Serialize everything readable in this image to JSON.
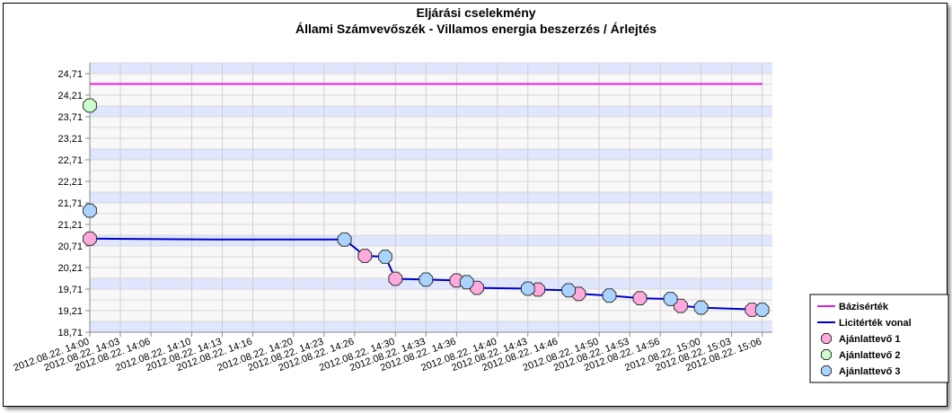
{
  "chart_data": {
    "type": "line",
    "title": "Eljárási cselekmény",
    "subtitle": "Állami Számvevőszék - Villamos energia beszerzés / Árlejtés",
    "ylim": [
      18.71,
      24.96
    ],
    "yticks": [
      "18,71",
      "19,21",
      "19,71",
      "20,21",
      "20,71",
      "21,21",
      "21,71",
      "22,21",
      "22,71",
      "23,21",
      "23,71",
      "24,21",
      "24,71"
    ],
    "xlim": [
      "2012.08.22. 14:00",
      "2012.08.22. 15:07"
    ],
    "xticks": [
      "2012.08.22. 14:00",
      "2012.08.22. 14:03",
      "2012.08.22. 14:06",
      "2012.08.22. 14:10",
      "2012.08.22. 14:13",
      "2012.08.22. 14:16",
      "2012.08.22. 14:20",
      "2012.08.22. 14:23",
      "2012.08.22. 14:26",
      "2012.08.22. 14:30",
      "2012.08.22. 14:33",
      "2012.08.22. 14:36",
      "2012.08.22. 14:40",
      "2012.08.22. 14:43",
      "2012.08.22. 14:46",
      "2012.08.22. 14:50",
      "2012.08.22. 14:53",
      "2012.08.22. 14:56",
      "2012.08.22. 15:00",
      "2012.08.22. 15:03",
      "2012.08.22. 15:06"
    ],
    "grid": true,
    "legend_position": "bottom-right",
    "series": [
      {
        "name": "Bázisérték",
        "kind": "line",
        "color": "#e020e0",
        "x": [
          "2012.08.22. 14:00",
          "2012.08.22. 15:06"
        ],
        "y": [
          24.47,
          24.47
        ]
      },
      {
        "name": "Licitérték vonal",
        "kind": "step-line",
        "color": "#0000cc",
        "x": [
          "2012.08.22. 14:00",
          "2012.08.22. 14:12",
          "2012.08.22. 14:25",
          "2012.08.22. 14:27",
          "2012.08.22. 14:29",
          "2012.08.22. 14:30",
          "2012.08.22. 14:33",
          "2012.08.22. 14:36",
          "2012.08.22. 14:37",
          "2012.08.22. 14:38",
          "2012.08.22. 14:43",
          "2012.08.22. 14:44",
          "2012.08.22. 14:47",
          "2012.08.22. 14:48",
          "2012.08.22. 14:51",
          "2012.08.22. 14:54",
          "2012.08.22. 14:57",
          "2012.08.22. 14:58",
          "2012.08.22. 15:00",
          "2012.08.22. 15:06"
        ],
        "y": [
          20.88,
          20.86,
          20.86,
          20.48,
          20.46,
          19.95,
          19.93,
          19.91,
          19.87,
          19.74,
          19.72,
          19.7,
          19.68,
          19.6,
          19.56,
          19.5,
          19.48,
          19.32,
          19.28,
          19.23
        ]
      },
      {
        "name": "Ajánlattevő 1",
        "kind": "marker",
        "color": "#ffaadd",
        "x": [
          "2012.08.22. 14:00",
          "2012.08.22. 14:27",
          "2012.08.22. 14:30",
          "2012.08.22. 14:36",
          "2012.08.22. 14:38",
          "2012.08.22. 14:44",
          "2012.08.22. 14:48",
          "2012.08.22. 14:54",
          "2012.08.22. 14:58",
          "2012.08.22. 15:05"
        ],
        "y": [
          20.88,
          20.48,
          19.95,
          19.91,
          19.74,
          19.7,
          19.6,
          19.5,
          19.32,
          19.23
        ]
      },
      {
        "name": "Ajánlattevő 2",
        "kind": "marker",
        "color": "#ccffcc",
        "x": [
          "2012.08.22. 14:00"
        ],
        "y": [
          23.97
        ]
      },
      {
        "name": "Ajánlattevő 3",
        "kind": "marker",
        "color": "#aad4ff",
        "x": [
          "2012.08.22. 14:00",
          "2012.08.22. 14:25",
          "2012.08.22. 14:29",
          "2012.08.22. 14:33",
          "2012.08.22. 14:37",
          "2012.08.22. 14:43",
          "2012.08.22. 14:47",
          "2012.08.22. 14:51",
          "2012.08.22. 14:57",
          "2012.08.22. 15:00",
          "2012.08.22. 15:06"
        ],
        "y": [
          21.53,
          20.86,
          20.46,
          19.93,
          19.87,
          19.72,
          19.68,
          19.56,
          19.48,
          19.28,
          19.23
        ]
      }
    ]
  }
}
